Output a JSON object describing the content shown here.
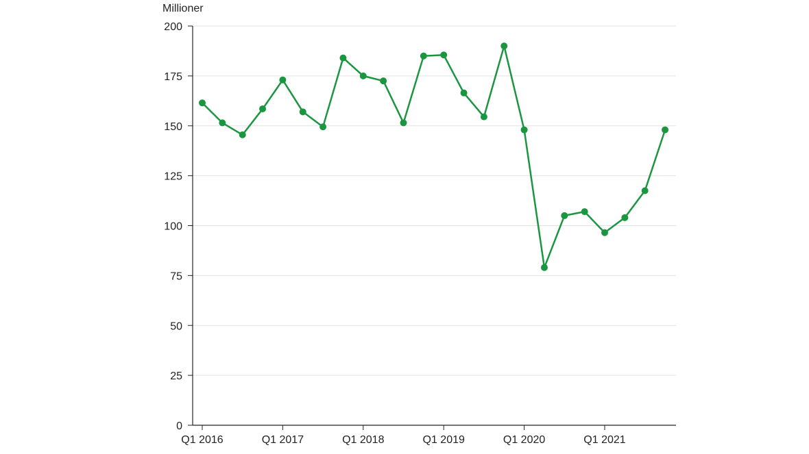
{
  "chart_data": {
    "type": "line",
    "title": "",
    "xlabel": "",
    "ylabel": "Millioner",
    "ylim": [
      0,
      200
    ],
    "y_ticks": [
      0,
      25,
      50,
      75,
      100,
      125,
      150,
      175,
      200
    ],
    "x_tick_labels": [
      "Q1 2016",
      "Q1 2017",
      "Q1 2018",
      "Q1 2019",
      "Q1 2020",
      "Q1 2021"
    ],
    "x_tick_positions": [
      0,
      4,
      8,
      12,
      16,
      20
    ],
    "categories": [
      "Q1 2016",
      "Q2 2016",
      "Q3 2016",
      "Q4 2016",
      "Q1 2017",
      "Q2 2017",
      "Q3 2017",
      "Q4 2017",
      "Q1 2018",
      "Q2 2018",
      "Q3 2018",
      "Q4 2018",
      "Q1 2019",
      "Q2 2019",
      "Q3 2019",
      "Q4 2019",
      "Q1 2020",
      "Q2 2020",
      "Q3 2020",
      "Q4 2020",
      "Q1 2021",
      "Q2 2021",
      "Q3 2021",
      "Q4 2021"
    ],
    "series": [
      {
        "values": [
          161.5,
          151.5,
          145.5,
          158.5,
          173,
          157,
          149.5,
          184,
          175,
          172.5,
          151.5,
          185,
          185.5,
          166.5,
          154.5,
          190,
          148,
          79,
          105,
          107,
          96.5,
          104,
          117.5,
          148
        ],
        "color": "#1a9641"
      }
    ],
    "grid": "horizontal",
    "gridColor": "#e3e3e3",
    "axisColor": "#222222"
  }
}
